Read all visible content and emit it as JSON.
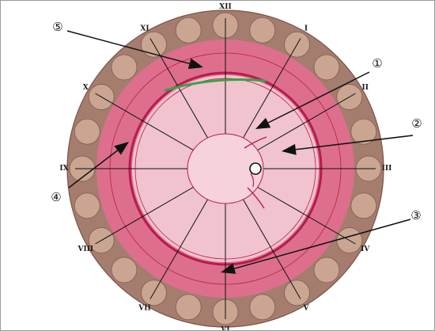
{
  "clock_positions": [
    {
      "label": "XII",
      "hour": 12
    },
    {
      "label": "I",
      "hour": 1
    },
    {
      "label": "II",
      "hour": 2
    },
    {
      "label": "III",
      "hour": 3
    },
    {
      "label": "IV",
      "hour": 4
    },
    {
      "label": "V",
      "hour": 5
    },
    {
      "label": "VI",
      "hour": 6
    },
    {
      "label": "VII",
      "hour": 7
    },
    {
      "label": "VIII",
      "hour": 8
    },
    {
      "label": "IX",
      "hour": 9
    },
    {
      "label": "X",
      "hour": 10
    },
    {
      "label": "XI",
      "hour": 11
    }
  ],
  "callouts": [
    {
      "label": "①"
    },
    {
      "label": "②"
    },
    {
      "label": "③"
    },
    {
      "label": "④"
    },
    {
      "label": "⑤"
    }
  ],
  "colors": {
    "paper": "#ffffff",
    "outer_rim": "#a47d6f",
    "outer_rim_dark": "#7a5448",
    "scallop": "#c9a592",
    "pink_band": "#dd6f8c",
    "red_ring": "#b81b4d",
    "inner_disc": "#f0c3ce",
    "center_disc": "#f6d3da",
    "green_mark": "#37a349",
    "line": "#111111"
  }
}
